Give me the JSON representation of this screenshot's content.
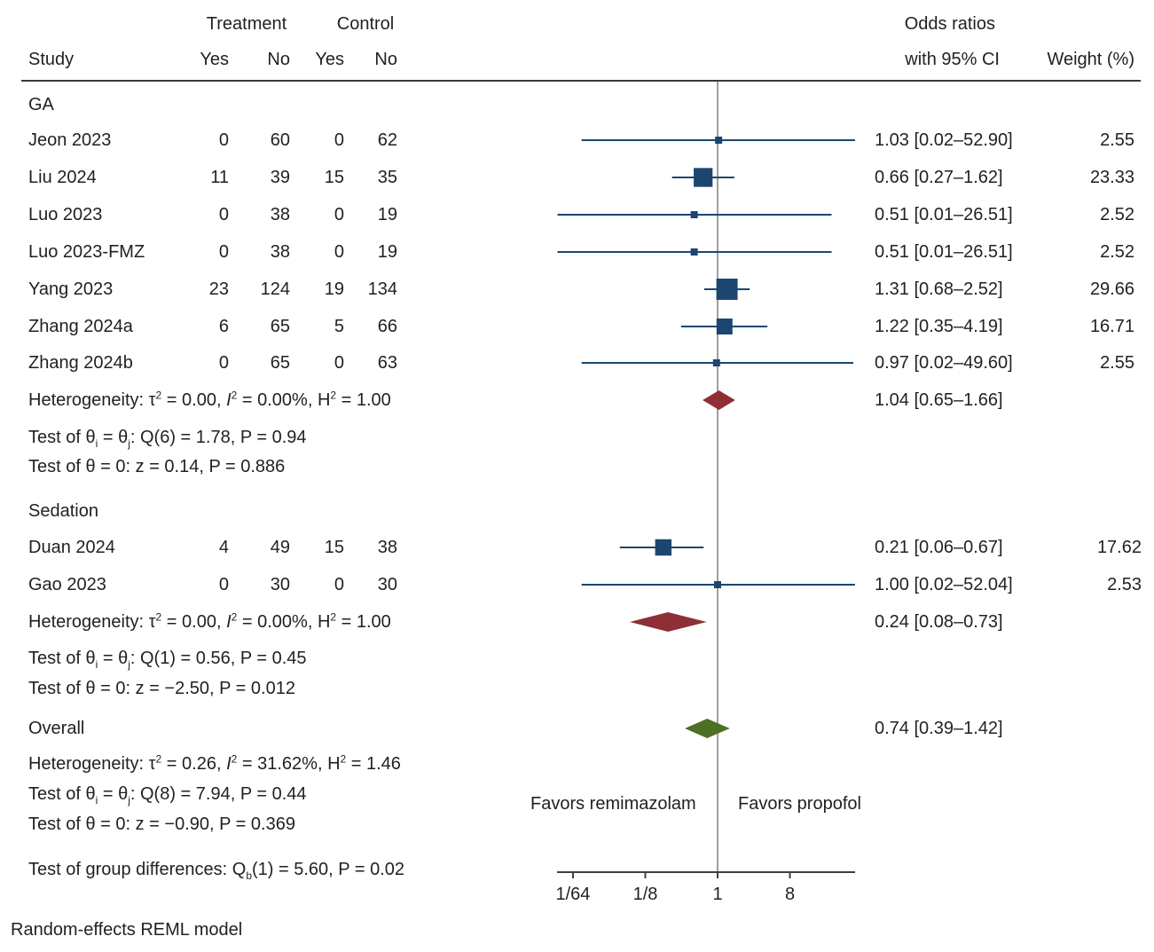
{
  "header": {
    "study": "Study",
    "treatment": "Treatment",
    "control": "Control",
    "yes": "Yes",
    "no": "No",
    "or_line1": "Odds ratios",
    "or_line2": "with 95% CI",
    "weight": "Weight (%)"
  },
  "colors": {
    "study_marker": "#1c4670",
    "subgroup_diamond": "#8e2f36",
    "overall_diamond": "#4e7024",
    "reference_line": "#a0a0a0",
    "axis": "#404040",
    "text": "#231f20"
  },
  "groups": [
    {
      "name": "GA",
      "studies": [
        {
          "study": "Jeon 2023",
          "t_yes": "0",
          "t_no": "60",
          "c_yes": "0",
          "c_no": "62",
          "or": 1.03,
          "lo": 0.02,
          "hi": 52.9,
          "or_text": "1.03 [0.02–52.90]",
          "weight": "2.55"
        },
        {
          "study": "Liu 2024",
          "t_yes": "11",
          "t_no": "39",
          "c_yes": "15",
          "c_no": "35",
          "or": 0.66,
          "lo": 0.27,
          "hi": 1.62,
          "or_text": "0.66 [0.27–1.62]",
          "weight": "23.33"
        },
        {
          "study": "Luo 2023",
          "t_yes": "0",
          "t_no": "38",
          "c_yes": "0",
          "c_no": "19",
          "or": 0.51,
          "lo": 0.01,
          "hi": 26.51,
          "or_text": "0.51 [0.01–26.51]",
          "weight": "2.52"
        },
        {
          "study": "Luo 2023-FMZ",
          "t_yes": "0",
          "t_no": "38",
          "c_yes": "0",
          "c_no": "19",
          "or": 0.51,
          "lo": 0.01,
          "hi": 26.51,
          "or_text": "0.51 [0.01–26.51]",
          "weight": "2.52"
        },
        {
          "study": "Yang 2023",
          "t_yes": "23",
          "t_no": "124",
          "c_yes": "19",
          "c_no": "134",
          "or": 1.31,
          "lo": 0.68,
          "hi": 2.52,
          "or_text": "1.31 [0.68–2.52]",
          "weight": "29.66"
        },
        {
          "study": "Zhang 2024a",
          "t_yes": "6",
          "t_no": "65",
          "c_yes": "5",
          "c_no": "66",
          "or": 1.22,
          "lo": 0.35,
          "hi": 4.19,
          "or_text": "1.22 [0.35–4.19]",
          "weight": "16.71"
        },
        {
          "study": "Zhang 2024b",
          "t_yes": "0",
          "t_no": "65",
          "c_yes": "0",
          "c_no": "63",
          "or": 0.97,
          "lo": 0.02,
          "hi": 49.6,
          "or_text": "0.97 [0.02–49.60]",
          "weight": "2.55"
        }
      ],
      "summary": {
        "or": 1.04,
        "lo": 0.65,
        "hi": 1.66,
        "or_text": "1.04 [0.65–1.66]"
      },
      "heterogeneity": {
        "prefix": "Heterogeneity: τ",
        "tau2": " = 0.00, ",
        "i_label": "I",
        "i2": " = 0.00%, H",
        "h2": " = 1.00"
      },
      "test_ij": {
        "prefix": "Test of θ",
        "mid": " = θ",
        "rest": ": Q(6) = 1.78, P = 0.94"
      },
      "test_0": "Test of θ = 0: z = 0.14, P = 0.886"
    },
    {
      "name": "Sedation",
      "studies": [
        {
          "study": "Duan 2024",
          "t_yes": "4",
          "t_no": "49",
          "c_yes": "15",
          "c_no": "38",
          "or": 0.21,
          "lo": 0.06,
          "hi": 0.67,
          "or_text": "0.21 [0.06–0.67]",
          "weight": "17.62"
        },
        {
          "study": "Gao 2023",
          "t_yes": "0",
          "t_no": "30",
          "c_yes": "0",
          "c_no": "30",
          "or": 1.0,
          "lo": 0.02,
          "hi": 52.04,
          "or_text": "1.00 [0.02–52.04]",
          "weight": "2.53"
        }
      ],
      "summary": {
        "or": 0.24,
        "lo": 0.08,
        "hi": 0.73,
        "or_text": "0.24 [0.08–0.73]"
      },
      "heterogeneity": {
        "prefix": "Heterogeneity: τ",
        "tau2": " = 0.00, ",
        "i_label": "I",
        "i2": " = 0.00%, H",
        "h2": " = 1.00"
      },
      "test_ij": {
        "prefix": "Test of θ",
        "mid": " = θ",
        "rest": ": Q(1) = 0.56, P = 0.45"
      },
      "test_0": "Test of θ = 0: z = −2.50, P = 0.012"
    }
  ],
  "overall": {
    "label": "Overall",
    "or": 0.74,
    "lo": 0.39,
    "hi": 1.42,
    "or_text": "0.74 [0.39–1.42]",
    "heterogeneity": {
      "prefix": "Heterogeneity: τ",
      "tau2": " = 0.26, ",
      "i_label": "I",
      "i2": " = 31.62%, H",
      "h2": " = 1.46"
    },
    "test_ij": {
      "prefix": "Test of θ",
      "mid": " = θ",
      "rest": ": Q(8) = 7.94, P = 0.44"
    },
    "test_0": "Test of θ = 0: z = −0.90, P = 0.369",
    "group_diff": {
      "prefix": "Test of group differences: Q",
      "sub": "b",
      "rest": "(1) = 5.60, P = 0.02"
    }
  },
  "favors_left": "Favors remimazolam",
  "favors_right": "Favors propofol",
  "footnote": "Random-effects REML model",
  "chart_data": {
    "type": "forest",
    "title": "",
    "xlabel": "",
    "x_scale": "log2",
    "x_ticks": [
      0.015625,
      0.125,
      1,
      8
    ],
    "x_tick_labels": [
      "1/64",
      "1/8",
      "1",
      "8"
    ],
    "x_range": [
      0.01,
      64
    ],
    "reference_line": 1,
    "series": [
      {
        "name": "GA",
        "points": [
          {
            "label": "Jeon 2023",
            "or": 1.03,
            "lo": 0.02,
            "hi": 52.9,
            "weight": 2.55
          },
          {
            "label": "Liu 2024",
            "or": 0.66,
            "lo": 0.27,
            "hi": 1.62,
            "weight": 23.33
          },
          {
            "label": "Luo 2023",
            "or": 0.51,
            "lo": 0.01,
            "hi": 26.51,
            "weight": 2.52
          },
          {
            "label": "Luo 2023-FMZ",
            "or": 0.51,
            "lo": 0.01,
            "hi": 26.51,
            "weight": 2.52
          },
          {
            "label": "Yang 2023",
            "or": 1.31,
            "lo": 0.68,
            "hi": 2.52,
            "weight": 29.66
          },
          {
            "label": "Zhang 2024a",
            "or": 1.22,
            "lo": 0.35,
            "hi": 4.19,
            "weight": 16.71
          },
          {
            "label": "Zhang 2024b",
            "or": 0.97,
            "lo": 0.02,
            "hi": 49.6,
            "weight": 2.55
          }
        ],
        "summary": {
          "or": 1.04,
          "lo": 0.65,
          "hi": 1.66
        }
      },
      {
        "name": "Sedation",
        "points": [
          {
            "label": "Duan 2024",
            "or": 0.21,
            "lo": 0.06,
            "hi": 0.67,
            "weight": 17.62
          },
          {
            "label": "Gao 2023",
            "or": 1.0,
            "lo": 0.02,
            "hi": 52.04,
            "weight": 2.53
          }
        ],
        "summary": {
          "or": 0.24,
          "lo": 0.08,
          "hi": 0.73
        }
      },
      {
        "name": "Overall",
        "summary": {
          "or": 0.74,
          "lo": 0.39,
          "hi": 1.42
        }
      }
    ],
    "annotations": [
      "Favors remimazolam",
      "Favors propofol",
      "Random-effects REML model"
    ]
  }
}
